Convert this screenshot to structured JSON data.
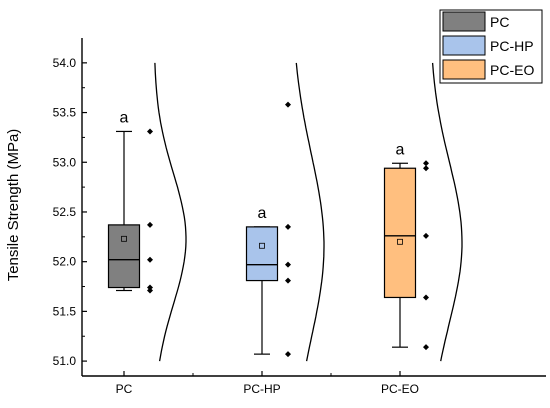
{
  "chart_data": {
    "type": "box",
    "title": "",
    "xlabel": "",
    "ylabel": "Tensile Strength (MPa)",
    "ylim": [
      50.85,
      54.25
    ],
    "yticks": [
      "51.0",
      "51.5",
      "52.0",
      "52.5",
      "53.0",
      "53.5",
      "54.0"
    ],
    "grid": false,
    "legend_position": "top-right",
    "categories": [
      "PC",
      "PC-HP",
      "PC-EO"
    ],
    "series": [
      {
        "name": "PC",
        "color": "#808080",
        "min": 51.71,
        "q1": 51.74,
        "median": 52.02,
        "q3": 52.37,
        "max": 53.31,
        "mean": 52.23,
        "points": [
          53.31,
          52.37,
          52.02,
          51.74,
          51.71
        ],
        "significance": "a"
      },
      {
        "name": "PC-HP",
        "color": "#a9c4eb",
        "min": 51.07,
        "q1": 51.81,
        "median": 51.97,
        "q3": 52.35,
        "max": 52.35,
        "mean": 52.16,
        "points": [
          53.58,
          52.35,
          51.97,
          51.81,
          51.07
        ],
        "significance": "a"
      },
      {
        "name": "PC-EO",
        "color": "#ffbf7f",
        "min": 51.14,
        "q1": 51.64,
        "median": 52.26,
        "q3": 52.94,
        "max": 52.99,
        "mean": 52.2,
        "points": [
          52.99,
          52.94,
          52.26,
          51.64,
          51.14
        ],
        "significance": "a"
      }
    ]
  }
}
